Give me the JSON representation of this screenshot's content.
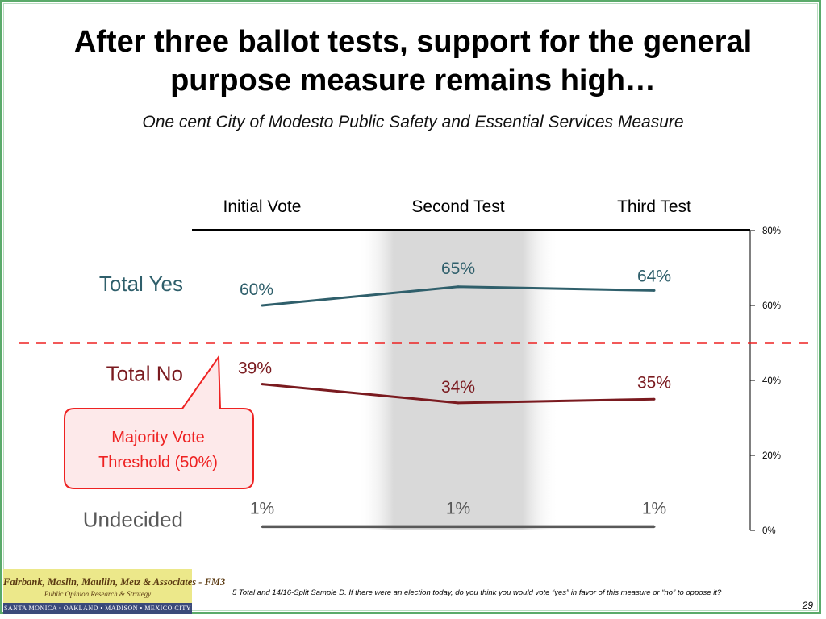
{
  "slide": {
    "title": "After three ballot tests, support for the general purpose measure remains high…",
    "subtitle": "One cent City of Modesto Public Safety and Essential Services Measure",
    "footnote": "5 Total and 14/16-Split Sample D. If there were an election today, do you think you would vote “yes” in favor of this measure or “no” to oppose it?",
    "page_number": "29",
    "logo": {
      "line1": "Fairbank, Maslin, Maullin, Metz & Associates - FM3",
      "line2": "Public Opinion Research & Strategy",
      "line3": "SANTA MONICA • OAKLAND • MADISON • MEXICO CITY"
    },
    "colors": {
      "border": "#5aaa6a",
      "yes": "#2f5f6b",
      "no": "#7a1a1f",
      "undecided": "#595959",
      "threshold": "#ee2222",
      "callout_fill": "#fde9ea",
      "highlight": "#d9d9d9"
    }
  },
  "chart_data": {
    "type": "line",
    "categories": [
      "Initial Vote",
      "Second Test",
      "Third Test"
    ],
    "series": [
      {
        "name": "Total Yes",
        "values": [
          60,
          65,
          64
        ],
        "labels": [
          "60%",
          "65%",
          "64%"
        ]
      },
      {
        "name": "Total No",
        "values": [
          39,
          34,
          35
        ],
        "labels": [
          "39%",
          "34%",
          "35%"
        ]
      },
      {
        "name": "Undecided",
        "values": [
          1,
          1,
          1
        ],
        "labels": [
          "1%",
          "1%",
          "1%"
        ]
      }
    ],
    "ylim": [
      0,
      80
    ],
    "yticks": [
      0,
      20,
      40,
      60,
      80
    ],
    "ytick_labels": [
      "0%",
      "20%",
      "40%",
      "60%",
      "80%"
    ],
    "highlighted_category": "Second Test",
    "threshold": {
      "value": 50,
      "label": "Majority Vote Threshold (50%)"
    }
  }
}
